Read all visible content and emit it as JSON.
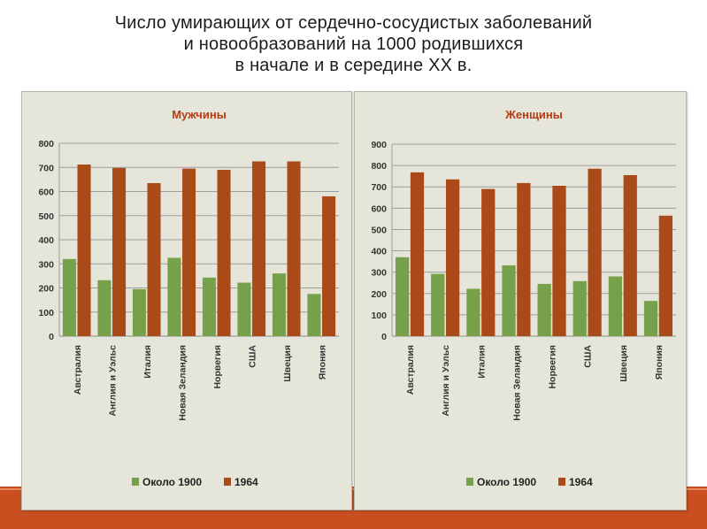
{
  "page": {
    "title_lines": [
      "Число умирающих от сердечно-сосудистых заболеваний",
      "и новообразований на 1000 родившихся",
      "в начале и в середине XX в."
    ]
  },
  "colors": {
    "series_1900": "#77a04a",
    "series_1964": "#a94a18",
    "chart_title": "#b43c14",
    "panel_bg": "#e6e5da",
    "grid": "#9d9d9d",
    "bottom_stripe": "#c94f20"
  },
  "chart_data": [
    {
      "type": "bar",
      "title": "Мужчины",
      "categories": [
        "Австралия",
        "Англия и Уэльс",
        "Италия",
        "Новая Зеландия",
        "Норвегия",
        "США",
        "Швеция",
        "Япония"
      ],
      "series": [
        {
          "name": "Около 1900",
          "values": [
            320,
            232,
            195,
            325,
            243,
            222,
            260,
            175
          ]
        },
        {
          "name": "1964",
          "values": [
            712,
            698,
            635,
            695,
            690,
            725,
            725,
            580
          ]
        }
      ],
      "yticks": [
        0,
        100,
        200,
        300,
        400,
        500,
        600,
        700,
        800
      ],
      "ylim": [
        0,
        800
      ],
      "grid": true,
      "legend": "bottom"
    },
    {
      "type": "bar",
      "title": "Женщины",
      "categories": [
        "Австралия",
        "Англия и Уэльс",
        "Италия",
        "Новая Зеландия",
        "Норвегия",
        "США",
        "Швеция",
        "Япония"
      ],
      "series": [
        {
          "name": "Около 1900",
          "values": [
            370,
            292,
            222,
            332,
            245,
            258,
            280,
            165
          ]
        },
        {
          "name": "1964",
          "values": [
            768,
            735,
            690,
            718,
            705,
            785,
            755,
            565
          ]
        }
      ],
      "yticks": [
        0,
        100,
        200,
        300,
        400,
        500,
        600,
        700,
        800,
        900
      ],
      "ylim": [
        0,
        900
      ],
      "grid": true,
      "legend": "bottom"
    }
  ]
}
